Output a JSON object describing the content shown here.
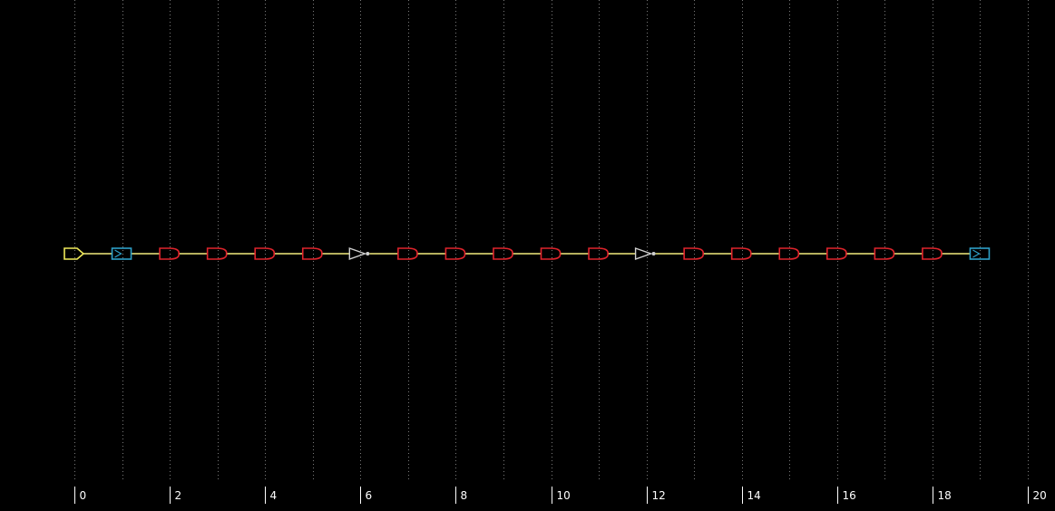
{
  "colors": {
    "background": "#000000",
    "grid": "#7a7a7a",
    "wire": "#f2ec7e",
    "io_port": "#f0ea5a",
    "flipflop": "#2ea0c8",
    "and_gate": "#e0242c",
    "inverter": "#d0d0d0",
    "ruler_text": "#ffffff"
  },
  "ruler": {
    "ticks": [
      "0",
      "2",
      "4",
      "6",
      "8",
      "10",
      "12",
      "14",
      "16",
      "18",
      "20"
    ]
  },
  "schematic": {
    "path": [
      {
        "type": "input-port",
        "stage": 0
      },
      {
        "type": "flipflop",
        "stage": 1
      },
      {
        "type": "and-gate",
        "stage": 2
      },
      {
        "type": "and-gate",
        "stage": 3
      },
      {
        "type": "and-gate",
        "stage": 4
      },
      {
        "type": "and-gate",
        "stage": 5
      },
      {
        "type": "inverter",
        "stage": 6
      },
      {
        "type": "and-gate",
        "stage": 7
      },
      {
        "type": "and-gate",
        "stage": 8
      },
      {
        "type": "and-gate",
        "stage": 9
      },
      {
        "type": "and-gate",
        "stage": 10
      },
      {
        "type": "and-gate",
        "stage": 11
      },
      {
        "type": "inverter",
        "stage": 12
      },
      {
        "type": "and-gate",
        "stage": 13
      },
      {
        "type": "and-gate",
        "stage": 14
      },
      {
        "type": "and-gate",
        "stage": 15
      },
      {
        "type": "and-gate",
        "stage": 16
      },
      {
        "type": "and-gate",
        "stage": 17
      },
      {
        "type": "and-gate",
        "stage": 18
      },
      {
        "type": "flipflop",
        "stage": 19
      }
    ]
  }
}
